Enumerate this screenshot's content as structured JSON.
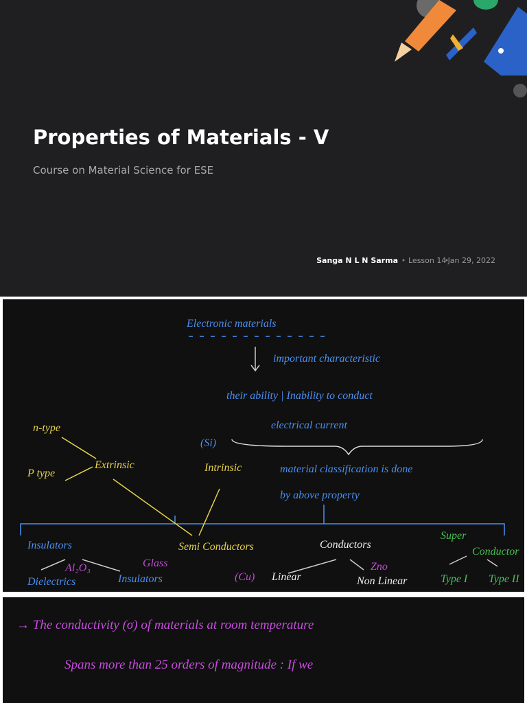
{
  "header": {
    "title": "Properties of Materials - V",
    "subtitle": "Course on Material Science for ESE",
    "author": "Sanga N L N Sarma",
    "lesson": "Lesson 14",
    "date": "Jan 29, 2022"
  },
  "notes": {
    "heading": "Electronic materials",
    "line1": "important characteristic",
    "line2": "their ability | Inability to conduct",
    "line3": "electrical current",
    "si": "(Si)",
    "ntype": "n-type",
    "ptype": "P type",
    "extrinsic": "Extrinsic",
    "intrinsic": "Intrinsic",
    "line4": "material classification is done",
    "line5": "by above property",
    "insulators": "Insulators",
    "glass": "Glass",
    "al2o3": "Al₂O₃",
    "dielectrics": "Dielectrics",
    "glass_insulators": "Insulators",
    "semiconductors": "Semi Conductors",
    "conductors": "Conductors",
    "cu": "(Cu)",
    "linear": "Linear",
    "zno": "Zno",
    "nonlinear": "Non Linear",
    "super": "Super",
    "superconductor": "Conductor",
    "type1": "Type I",
    "type2": "Type II"
  },
  "text": {
    "line1": "→  The  conductivity (σ)  of  materials  at  room  temperature",
    "line2": "Spans  more  than  25  orders  of  magnitude :  If  we"
  }
}
